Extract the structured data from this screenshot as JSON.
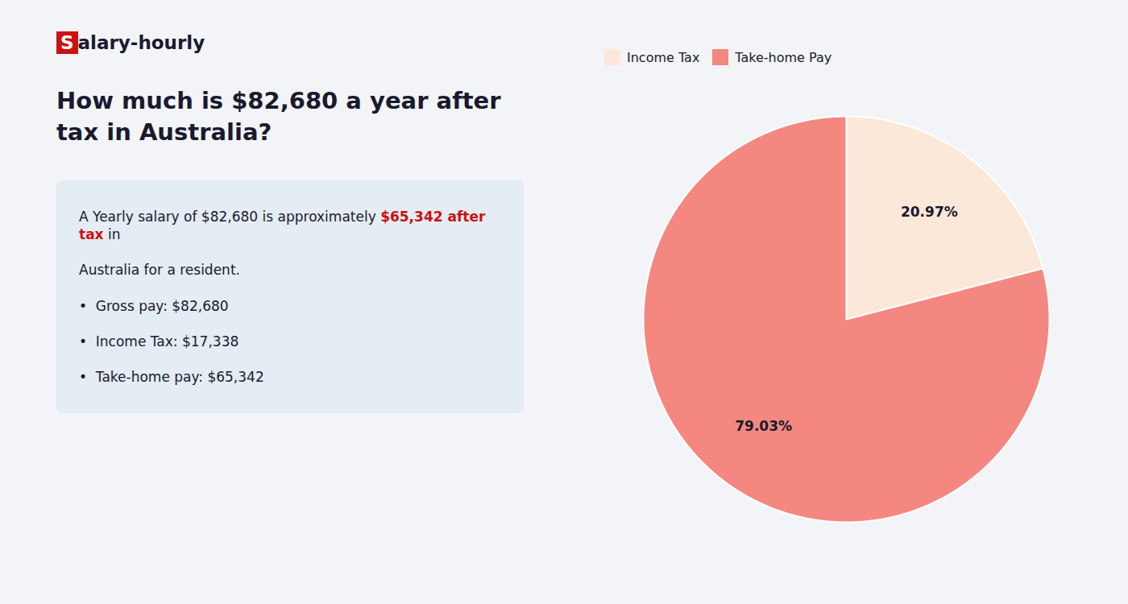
{
  "chart_data": {
    "type": "pie",
    "title": "How much is $82,680 a year after tax in Australia?",
    "annotations": [
      [
        {
          "text": "S",
          "color": "#cc1111"
        },
        {
          "text": "alary-hourly"
        }
      ],
      [
        {
          "text": "A Yearly salary of $82,680 is approximately "
        },
        {
          "text": "$65,342 after tax",
          "color": "#cc1111"
        },
        {
          "text": " in"
        }
      ],
      [
        {
          "text": "Australia for a resident."
        }
      ],
      [
        {
          "text": "•  Gross pay: $82,680"
        }
      ],
      [
        {
          "text": "•  Income Tax: $17,338"
        }
      ],
      [
        {
          "text": "•  Take-home pay: $65,342"
        }
      ]
    ],
    "categories": [
      "Income Tax",
      "Take-home Pay"
    ],
    "values": [
      20.97,
      79.03
    ],
    "value_labels": [
      "20.97%",
      "79.03%"
    ],
    "colors": [
      "#fce8d8",
      "#f48880"
    ],
    "data_labels": true,
    "legend": "upper left"
  }
}
